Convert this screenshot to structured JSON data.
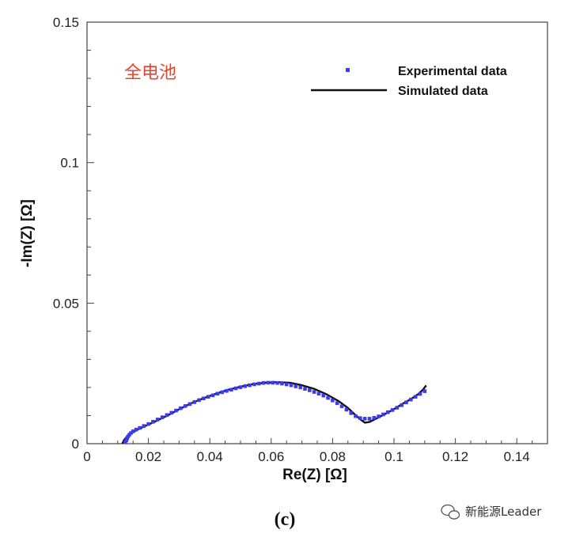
{
  "chart_data": {
    "type": "scatter",
    "title": "",
    "xlabel": "Re(Z) [Ω]",
    "ylabel": "-Im(Z) [Ω]",
    "xlim": [
      0,
      0.15
    ],
    "ylim": [
      0,
      0.15
    ],
    "x_ticks": [
      "0",
      "0.02",
      "0.04",
      "0.06",
      "0.08",
      "0.1",
      "0.12",
      "0.14"
    ],
    "y_ticks": [
      "0",
      "0.05",
      "0.1",
      "0.15"
    ],
    "annotation": "全电池",
    "legend_position": "top-right",
    "series": [
      {
        "name": "Experimental data",
        "style": "markers",
        "color": "#3b3bf0",
        "points": [
          [
            0.0125,
            0.0005
          ],
          [
            0.0128,
            0.0012
          ],
          [
            0.0131,
            0.0019
          ],
          [
            0.0134,
            0.0026
          ],
          [
            0.0138,
            0.0032
          ],
          [
            0.0143,
            0.0038
          ],
          [
            0.015,
            0.0044
          ],
          [
            0.016,
            0.005
          ],
          [
            0.0172,
            0.0056
          ],
          [
            0.0185,
            0.0063
          ],
          [
            0.02,
            0.007
          ],
          [
            0.0215,
            0.0078
          ],
          [
            0.023,
            0.0086
          ],
          [
            0.0245,
            0.0094
          ],
          [
            0.026,
            0.0102
          ],
          [
            0.0275,
            0.011
          ],
          [
            0.029,
            0.0118
          ],
          [
            0.0305,
            0.0126
          ],
          [
            0.032,
            0.0134
          ],
          [
            0.0335,
            0.0141
          ],
          [
            0.035,
            0.0148
          ],
          [
            0.0365,
            0.0155
          ],
          [
            0.038,
            0.0161
          ],
          [
            0.0395,
            0.0167
          ],
          [
            0.041,
            0.0172
          ],
          [
            0.0425,
            0.0178
          ],
          [
            0.044,
            0.0183
          ],
          [
            0.0455,
            0.0188
          ],
          [
            0.047,
            0.0192
          ],
          [
            0.0485,
            0.0197
          ],
          [
            0.05,
            0.0201
          ],
          [
            0.0515,
            0.0205
          ],
          [
            0.053,
            0.0208
          ],
          [
            0.0545,
            0.0211
          ],
          [
            0.056,
            0.0214
          ],
          [
            0.0575,
            0.0216
          ],
          [
            0.059,
            0.0217
          ],
          [
            0.0605,
            0.0217
          ],
          [
            0.062,
            0.0216
          ],
          [
            0.0635,
            0.0214
          ],
          [
            0.065,
            0.0211
          ],
          [
            0.0665,
            0.0208
          ],
          [
            0.068,
            0.0204
          ],
          [
            0.0695,
            0.02
          ],
          [
            0.071,
            0.0195
          ],
          [
            0.0725,
            0.019
          ],
          [
            0.074,
            0.0184
          ],
          [
            0.0755,
            0.0178
          ],
          [
            0.077,
            0.0171
          ],
          [
            0.0785,
            0.0163
          ],
          [
            0.08,
            0.0154
          ],
          [
            0.0815,
            0.0144
          ],
          [
            0.083,
            0.0133
          ],
          [
            0.0845,
            0.0121
          ],
          [
            0.086,
            0.0109
          ],
          [
            0.0875,
            0.0098
          ],
          [
            0.089,
            0.0091
          ],
          [
            0.0905,
            0.0089
          ],
          [
            0.092,
            0.0089
          ],
          [
            0.0935,
            0.0092
          ],
          [
            0.095,
            0.0097
          ],
          [
            0.0965,
            0.0104
          ],
          [
            0.098,
            0.0112
          ],
          [
            0.0995,
            0.012
          ],
          [
            0.101,
            0.0128
          ],
          [
            0.1025,
            0.0137
          ],
          [
            0.104,
            0.0147
          ],
          [
            0.1055,
            0.0157
          ],
          [
            0.107,
            0.0167
          ],
          [
            0.1085,
            0.0177
          ],
          [
            0.11,
            0.0187
          ]
        ]
      },
      {
        "name": "Simulated data",
        "style": "line",
        "color": "#111111",
        "points": [
          [
            0.0115,
            0.0
          ],
          [
            0.012,
            0.0012
          ],
          [
            0.013,
            0.0026
          ],
          [
            0.0145,
            0.0038
          ],
          [
            0.0165,
            0.005
          ],
          [
            0.019,
            0.0063
          ],
          [
            0.022,
            0.0078
          ],
          [
            0.026,
            0.0099
          ],
          [
            0.03,
            0.0122
          ],
          [
            0.034,
            0.0144
          ],
          [
            0.038,
            0.0162
          ],
          [
            0.042,
            0.0178
          ],
          [
            0.046,
            0.0192
          ],
          [
            0.05,
            0.0203
          ],
          [
            0.054,
            0.0212
          ],
          [
            0.058,
            0.0217
          ],
          [
            0.062,
            0.0219
          ],
          [
            0.066,
            0.0217
          ],
          [
            0.07,
            0.0208
          ],
          [
            0.074,
            0.0195
          ],
          [
            0.078,
            0.0176
          ],
          [
            0.082,
            0.0151
          ],
          [
            0.085,
            0.0127
          ],
          [
            0.087,
            0.0106
          ],
          [
            0.089,
            0.0087
          ],
          [
            0.0905,
            0.0075
          ],
          [
            0.092,
            0.0077
          ],
          [
            0.094,
            0.0088
          ],
          [
            0.097,
            0.0105
          ],
          [
            0.1,
            0.0123
          ],
          [
            0.103,
            0.0143
          ],
          [
            0.106,
            0.0162
          ],
          [
            0.108,
            0.0177
          ],
          [
            0.1095,
            0.0193
          ],
          [
            0.1105,
            0.0207
          ]
        ]
      }
    ]
  },
  "caption": "(c)",
  "watermark": "新能源Leader"
}
